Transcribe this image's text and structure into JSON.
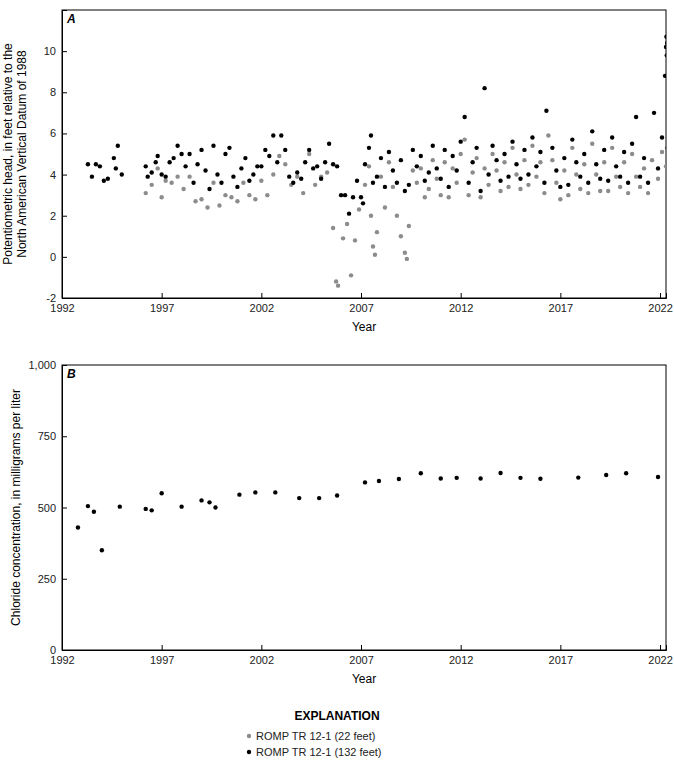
{
  "chart_data": [
    {
      "type": "scatter",
      "panel_label": "A",
      "xlabel": "Year",
      "ylabel": [
        "Potentiometric head, in feet relative to the",
        "North American Vertical Datum of 1988"
      ],
      "xlim": [
        1992,
        2022.3
      ],
      "xticks": [
        1992,
        1997,
        2002,
        2007,
        2012,
        2017,
        2022
      ],
      "ylim": [
        -2,
        12
      ],
      "yticks": [
        -2,
        0,
        2,
        4,
        6,
        8,
        10
      ],
      "grid": false,
      "marker": "circle",
      "legend": "bottom",
      "legend_title": "EXPLANATION",
      "series": [
        {
          "name": "ROMP TR 12-1 (22 feet)",
          "color": "#8c8c8c",
          "x": [
            1996.2,
            1996.5,
            1996.8,
            1997.0,
            1997.2,
            1997.5,
            1997.8,
            1998.1,
            1998.4,
            1998.7,
            1999.0,
            1999.3,
            1999.6,
            1999.9,
            2000.2,
            2000.5,
            2000.8,
            2001.1,
            2001.4,
            2001.7,
            2002.0,
            2002.3,
            2002.6,
            2002.9,
            2003.2,
            2003.5,
            2003.8,
            2004.1,
            2004.4,
            2004.7,
            2005.0,
            2005.3,
            2005.6,
            2005.75,
            2005.85,
            2006.1,
            2006.3,
            2006.5,
            2006.7,
            2006.9,
            2007.2,
            2007.4,
            2007.5,
            2007.6,
            2007.7,
            2007.8,
            2008.0,
            2008.2,
            2008.4,
            2008.6,
            2008.8,
            2009.0,
            2009.2,
            2009.3,
            2009.4,
            2009.6,
            2009.8,
            2010.0,
            2010.2,
            2010.4,
            2010.6,
            2010.8,
            2011.0,
            2011.2,
            2011.4,
            2011.6,
            2011.8,
            2012.0,
            2012.2,
            2012.4,
            2012.6,
            2012.8,
            2013.0,
            2013.2,
            2013.4,
            2013.6,
            2013.8,
            2014.0,
            2014.2,
            2014.4,
            2014.6,
            2014.8,
            2015.0,
            2015.2,
            2015.4,
            2015.6,
            2015.8,
            2016.0,
            2016.2,
            2016.4,
            2016.6,
            2016.8,
            2017.0,
            2017.2,
            2017.4,
            2017.6,
            2017.8,
            2018.0,
            2018.2,
            2018.4,
            2018.6,
            2018.8,
            2019.0,
            2019.2,
            2019.4,
            2019.6,
            2019.8,
            2020.0,
            2020.2,
            2020.4,
            2020.6,
            2020.8,
            2021.0,
            2021.2,
            2021.4,
            2021.6,
            2021.9,
            2022.1,
            2022.3
          ],
          "values": [
            3.1,
            3.5,
            4.3,
            2.9,
            3.7,
            3.6,
            3.9,
            3.3,
            3.9,
            2.7,
            2.8,
            2.4,
            3.6,
            2.5,
            3.0,
            2.9,
            2.7,
            3.6,
            3.0,
            2.8,
            3.7,
            3.0,
            4.0,
            4.9,
            4.5,
            3.5,
            3.9,
            3.1,
            5.0,
            3.5,
            3.9,
            4.1,
            1.4,
            -1.2,
            -1.4,
            0.9,
            1.6,
            -0.9,
            0.8,
            2.3,
            3.5,
            4.4,
            2.0,
            0.5,
            0.1,
            1.2,
            3.9,
            2.4,
            4.6,
            3.4,
            2.0,
            1.0,
            0.2,
            -0.1,
            1.5,
            4.2,
            3.6,
            4.3,
            2.9,
            3.3,
            4.7,
            3.8,
            3.0,
            4.6,
            2.9,
            4.3,
            3.6,
            5.0,
            5.7,
            3.0,
            4.1,
            4.8,
            2.9,
            4.3,
            3.5,
            5.0,
            4.2,
            3.2,
            4.6,
            3.4,
            5.3,
            4.0,
            3.3,
            4.7,
            3.5,
            5.4,
            3.9,
            4.6,
            3.1,
            5.9,
            4.7,
            3.6,
            2.8,
            4.2,
            3.0,
            5.3,
            4.0,
            3.3,
            4.5,
            3.1,
            5.5,
            4.0,
            3.2,
            4.6,
            3.2,
            5.3,
            3.9,
            3.4,
            4.6,
            3.1,
            5.0,
            3.9,
            3.4,
            4.3,
            3.1,
            4.7,
            3.8,
            5.1,
            4.4
          ]
        },
        {
          "name": "ROMP TR 12-1 (132 feet)",
          "color": "#000000",
          "x": [
            1993.3,
            1993.5,
            1993.7,
            1993.9,
            1994.1,
            1994.3,
            1994.6,
            1994.7,
            1994.8,
            1995.0,
            1996.2,
            1996.3,
            1996.5,
            1996.7,
            1996.8,
            1997.0,
            1997.2,
            1997.4,
            1997.6,
            1997.8,
            1998.0,
            1998.2,
            1998.4,
            1998.6,
            1998.8,
            1999.0,
            1999.2,
            1999.4,
            1999.6,
            1999.8,
            2000.0,
            2000.2,
            2000.4,
            2000.6,
            2000.8,
            2001.0,
            2001.2,
            2001.4,
            2001.6,
            2001.8,
            2002.0,
            2002.2,
            2002.4,
            2002.6,
            2002.8,
            2003.0,
            2003.2,
            2003.4,
            2003.6,
            2003.8,
            2004.0,
            2004.2,
            2004.4,
            2004.6,
            2004.8,
            2005.0,
            2005.2,
            2005.4,
            2005.6,
            2005.8,
            2006.0,
            2006.2,
            2006.4,
            2006.6,
            2006.8,
            2007.0,
            2007.1,
            2007.2,
            2007.4,
            2007.5,
            2007.6,
            2007.8,
            2008.0,
            2008.2,
            2008.4,
            2008.6,
            2008.8,
            2009.0,
            2009.2,
            2009.4,
            2009.6,
            2009.8,
            2010.0,
            2010.2,
            2010.4,
            2010.6,
            2010.8,
            2011.0,
            2011.2,
            2011.4,
            2011.6,
            2011.8,
            2012.0,
            2012.2,
            2012.4,
            2012.6,
            2012.8,
            2013.0,
            2013.2,
            2013.4,
            2013.6,
            2013.8,
            2014.0,
            2014.2,
            2014.4,
            2014.6,
            2014.8,
            2015.0,
            2015.2,
            2015.4,
            2015.6,
            2015.8,
            2016.0,
            2016.2,
            2016.3,
            2016.6,
            2016.8,
            2017.0,
            2017.2,
            2017.4,
            2017.6,
            2017.8,
            2018.0,
            2018.2,
            2018.4,
            2018.6,
            2018.8,
            2019.0,
            2019.2,
            2019.4,
            2019.6,
            2019.8,
            2020.0,
            2020.2,
            2020.4,
            2020.6,
            2020.8,
            2021.0,
            2021.2,
            2021.4,
            2021.7,
            2021.9,
            2022.1,
            2022.25,
            2022.3,
            2022.32,
            2022.34,
            2022.36,
            2022.38
          ],
          "values": [
            4.5,
            3.9,
            4.5,
            4.4,
            3.7,
            3.8,
            4.8,
            4.3,
            5.4,
            4.0,
            4.4,
            3.9,
            4.1,
            4.6,
            4.9,
            4.0,
            3.9,
            4.6,
            4.8,
            5.4,
            5.0,
            4.4,
            5.0,
            3.6,
            4.5,
            5.2,
            4.2,
            3.3,
            5.4,
            4.0,
            3.6,
            5.0,
            5.3,
            3.9,
            3.4,
            4.3,
            4.8,
            3.7,
            4.0,
            4.4,
            4.4,
            5.2,
            4.9,
            5.9,
            4.6,
            5.9,
            5.2,
            3.9,
            3.6,
            4.1,
            3.8,
            4.6,
            5.2,
            4.3,
            4.4,
            3.8,
            4.6,
            5.5,
            4.5,
            4.4,
            3.0,
            3.0,
            2.1,
            2.9,
            3.7,
            2.9,
            2.6,
            4.5,
            5.3,
            5.9,
            3.6,
            3.9,
            4.8,
            3.4,
            5.1,
            4.2,
            3.6,
            4.7,
            3.2,
            3.5,
            5.2,
            4.4,
            4.9,
            3.7,
            4.1,
            5.4,
            4.3,
            3.8,
            5.2,
            3.4,
            4.9,
            4.2,
            5.6,
            6.8,
            3.6,
            4.6,
            5.3,
            3.2,
            8.2,
            4.0,
            5.4,
            4.7,
            3.7,
            5.0,
            3.9,
            5.6,
            4.5,
            3.8,
            5.2,
            4.0,
            5.8,
            4.4,
            5.1,
            3.6,
            7.1,
            5.3,
            4.2,
            3.4,
            4.8,
            3.5,
            5.7,
            4.6,
            3.9,
            5.0,
            3.6,
            6.1,
            4.5,
            3.8,
            5.2,
            3.7,
            5.8,
            4.4,
            3.9,
            5.1,
            3.6,
            5.5,
            6.8,
            3.9,
            4.8,
            3.6,
            7.0,
            4.3,
            5.8,
            8.8,
            10.2,
            10.7,
            9.8,
            10.4,
            5.3
          ]
        }
      ]
    },
    {
      "type": "scatter",
      "panel_label": "B",
      "xlabel": "Year",
      "ylabel": [
        "Chloride concentration, in milligrams per liter"
      ],
      "xlim": [
        1992,
        2022.3
      ],
      "xticks": [
        1992,
        1997,
        2002,
        2007,
        2012,
        2017,
        2022
      ],
      "ylim": [
        0,
        1000
      ],
      "yticks": [
        0,
        250,
        500,
        750,
        {
          "value": 1000,
          "label": "1,000"
        }
      ],
      "grid": false,
      "marker": "circle",
      "series": [
        {
          "color": "#000000",
          "x": [
            1992.8,
            1993.3,
            1993.6,
            1994.0,
            1994.9,
            1996.2,
            1996.5,
            1997.0,
            1998.0,
            1999.0,
            1999.4,
            1999.7,
            2000.9,
            2001.7,
            2002.7,
            2003.9,
            2004.9,
            2005.8,
            2007.2,
            2007.9,
            2008.9,
            2010.0,
            2011.0,
            2011.8,
            2013.0,
            2014.0,
            2015.0,
            2016.0,
            2017.9,
            2019.3,
            2020.3,
            2021.9
          ],
          "values": [
            430,
            505,
            485,
            350,
            503,
            495,
            490,
            550,
            503,
            525,
            518,
            500,
            545,
            553,
            553,
            533,
            533,
            542,
            588,
            593,
            600,
            620,
            602,
            604,
            602,
            621,
            604,
            601,
            605,
            614,
            620,
            607
          ]
        }
      ]
    }
  ]
}
